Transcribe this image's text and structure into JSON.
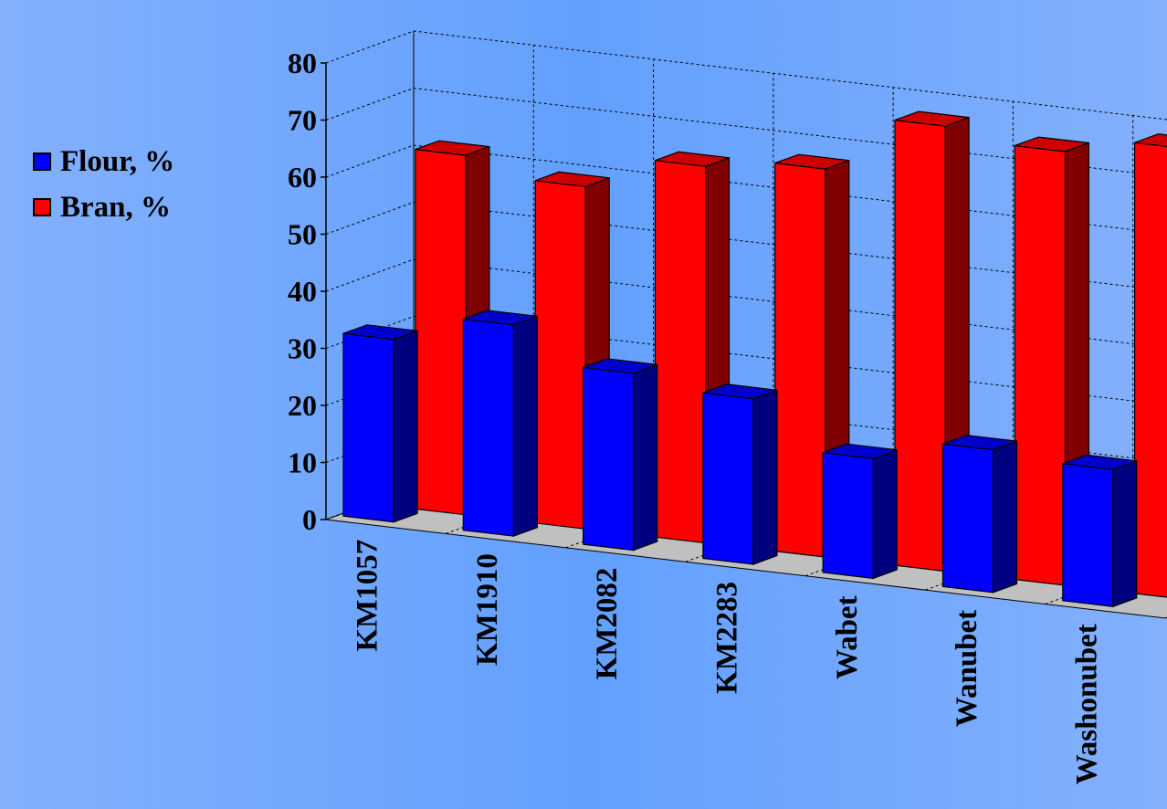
{
  "chart_data": {
    "type": "bar",
    "style": "3d-clustered",
    "categories": [
      "KM1057",
      "KM1910",
      "KM2082",
      "KM2283",
      "Wabet",
      "Wanubet",
      "Washonubet"
    ],
    "series": [
      {
        "name": "Flour, %",
        "color": "#0000ff",
        "values": [
          32,
          37,
          31,
          29,
          21,
          25,
          24
        ]
      },
      {
        "name": "Bran, %",
        "color": "#ff0000",
        "values": [
          63,
          60,
          66,
          68,
          78,
          76,
          79
        ]
      }
    ],
    "yticks": [
      0,
      10,
      20,
      30,
      40,
      50,
      60,
      70,
      80
    ],
    "ylim": [
      0,
      80
    ],
    "grid": true,
    "legend_position": "left",
    "floor_color": "#c0c0c0"
  }
}
